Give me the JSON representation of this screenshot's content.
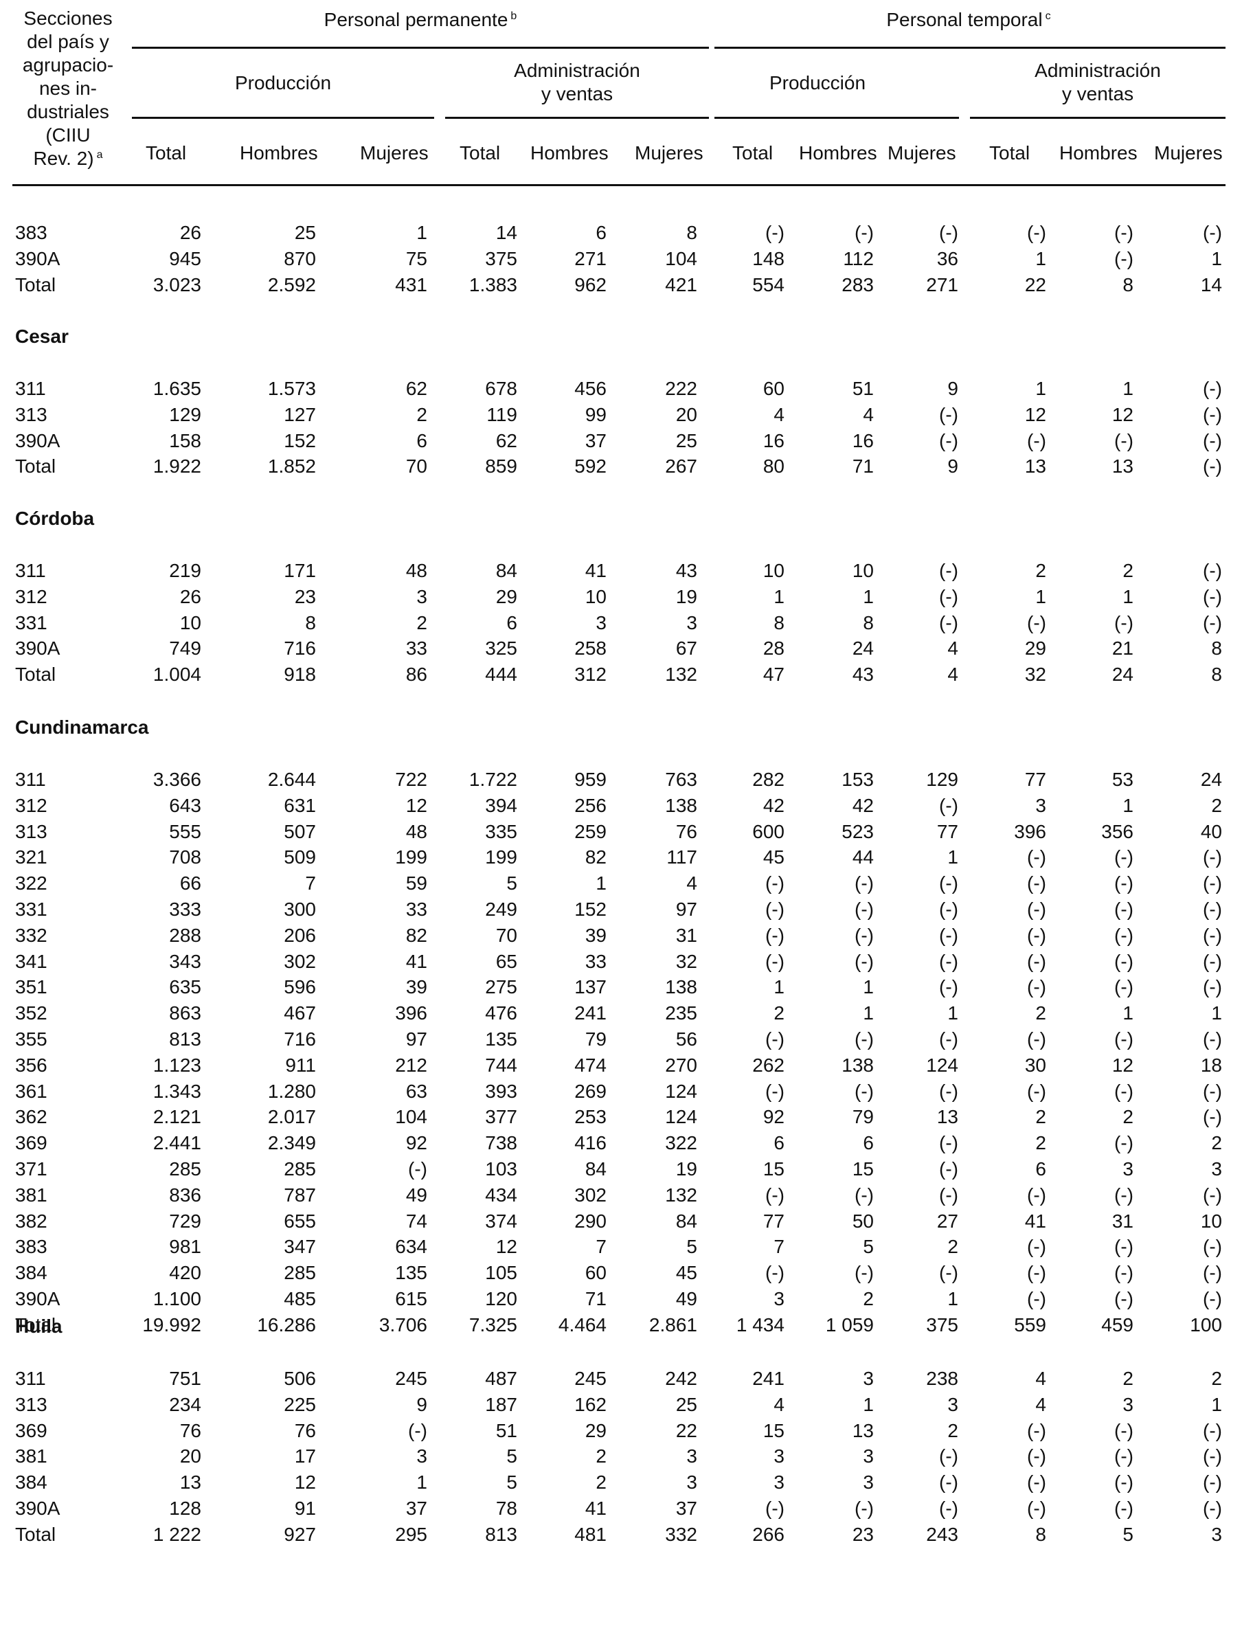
{
  "header": {
    "stub": [
      "Secciones",
      "del país y",
      "agrupacio-",
      "nes in-",
      "dustriales",
      "(CIIU",
      "Rev. 2)"
    ],
    "stub_note": "a",
    "permanent": {
      "label": "Personal permanente",
      "note": "b"
    },
    "temporary": {
      "label": "Personal temporal",
      "note": "c"
    },
    "produccion": "Producción",
    "admin": [
      "Administración",
      "y ventas"
    ],
    "cols": {
      "total": "Total",
      "hombres": "Hombres",
      "mujeres": "Mujeres"
    }
  },
  "sections": [
    {
      "title": "",
      "rows": [
        [
          "383",
          "26",
          "25",
          "1",
          "14",
          "6",
          "8",
          "(-)",
          "(-)",
          "(-)",
          "(-)",
          "(-)",
          "(-)"
        ],
        [
          "390A",
          "945",
          "870",
          "75",
          "375",
          "271",
          "104",
          "148",
          "112",
          "36",
          "1",
          "(-)",
          "1"
        ],
        [
          "Total",
          "3.023",
          "2.592",
          "431",
          "1.383",
          "962",
          "421",
          "554",
          "283",
          "271",
          "22",
          "8",
          "14"
        ]
      ]
    },
    {
      "title": "Cesar",
      "rows": [
        [
          "311",
          "1.635",
          "1.573",
          "62",
          "678",
          "456",
          "222",
          "60",
          "51",
          "9",
          "1",
          "1",
          "(-)"
        ],
        [
          "313",
          "129",
          "127",
          "2",
          "119",
          "99",
          "20",
          "4",
          "4",
          "(-)",
          "12",
          "12",
          "(-)"
        ],
        [
          "390A",
          "158",
          "152",
          "6",
          "62",
          "37",
          "25",
          "16",
          "16",
          "(-)",
          "(-)",
          "(-)",
          "(-)"
        ],
        [
          "Total",
          "1.922",
          "1.852",
          "70",
          "859",
          "592",
          "267",
          "80",
          "71",
          "9",
          "13",
          "13",
          "(-)"
        ]
      ]
    },
    {
      "title": "Córdoba",
      "rows": [
        [
          "311",
          "219",
          "171",
          "48",
          "84",
          "41",
          "43",
          "10",
          "10",
          "(-)",
          "2",
          "2",
          "(-)"
        ],
        [
          "312",
          "26",
          "23",
          "3",
          "29",
          "10",
          "19",
          "1",
          "1",
          "(-)",
          "1",
          "1",
          "(-)"
        ],
        [
          "331",
          "10",
          "8",
          "2",
          "6",
          "3",
          "3",
          "8",
          "8",
          "(-)",
          "(-)",
          "(-)",
          "(-)"
        ],
        [
          "390A",
          "749",
          "716",
          "33",
          "325",
          "258",
          "67",
          "28",
          "24",
          "4",
          "29",
          "21",
          "8"
        ],
        [
          "Total",
          "1.004",
          "918",
          "86",
          "444",
          "312",
          "132",
          "47",
          "43",
          "4",
          "32",
          "24",
          "8"
        ]
      ]
    },
    {
      "title": "Cundinamarca",
      "rows": [
        [
          "311",
          "3.366",
          "2.644",
          "722",
          "1.722",
          "959",
          "763",
          "282",
          "153",
          "129",
          "77",
          "53",
          "24"
        ],
        [
          "312",
          "643",
          "631",
          "12",
          "394",
          "256",
          "138",
          "42",
          "42",
          "(-)",
          "3",
          "1",
          "2"
        ],
        [
          "313",
          "555",
          "507",
          "48",
          "335",
          "259",
          "76",
          "600",
          "523",
          "77",
          "396",
          "356",
          "40"
        ],
        [
          "321",
          "708",
          "509",
          "199",
          "199",
          "82",
          "117",
          "45",
          "44",
          "1",
          "(-)",
          "(-)",
          "(-)"
        ],
        [
          "322",
          "66",
          "7",
          "59",
          "5",
          "1",
          "4",
          "(-)",
          "(-)",
          "(-)",
          "(-)",
          "(-)",
          "(-)"
        ],
        [
          "331",
          "333",
          "300",
          "33",
          "249",
          "152",
          "97",
          "(-)",
          "(-)",
          "(-)",
          "(-)",
          "(-)",
          "(-)"
        ],
        [
          "332",
          "288",
          "206",
          "82",
          "70",
          "39",
          "31",
          "(-)",
          "(-)",
          "(-)",
          "(-)",
          "(-)",
          "(-)"
        ],
        [
          "341",
          "343",
          "302",
          "41",
          "65",
          "33",
          "32",
          "(-)",
          "(-)",
          "(-)",
          "(-)",
          "(-)",
          "(-)"
        ],
        [
          "351",
          "635",
          "596",
          "39",
          "275",
          "137",
          "138",
          "1",
          "1",
          "(-)",
          "(-)",
          "(-)",
          "(-)"
        ],
        [
          "352",
          "863",
          "467",
          "396",
          "476",
          "241",
          "235",
          "2",
          "1",
          "1",
          "2",
          "1",
          "1"
        ],
        [
          "355",
          "813",
          "716",
          "97",
          "135",
          "79",
          "56",
          "(-)",
          "(-)",
          "(-)",
          "(-)",
          "(-)",
          "(-)"
        ],
        [
          "356",
          "1.123",
          "911",
          "212",
          "744",
          "474",
          "270",
          "262",
          "138",
          "124",
          "30",
          "12",
          "18"
        ],
        [
          "361",
          "1.343",
          "1.280",
          "63",
          "393",
          "269",
          "124",
          "(-)",
          "(-)",
          "(-)",
          "(-)",
          "(-)",
          "(-)"
        ],
        [
          "362",
          "2.121",
          "2.017",
          "104",
          "377",
          "253",
          "124",
          "92",
          "79",
          "13",
          "2",
          "2",
          "(-)"
        ],
        [
          "369",
          "2.441",
          "2.349",
          "92",
          "738",
          "416",
          "322",
          "6",
          "6",
          "(-)",
          "2",
          "(-)",
          "2"
        ],
        [
          "371",
          "285",
          "285",
          "(-)",
          "103",
          "84",
          "19",
          "15",
          "15",
          "(-)",
          "6",
          "3",
          "3"
        ],
        [
          "381",
          "836",
          "787",
          "49",
          "434",
          "302",
          "132",
          "(-)",
          "(-)",
          "(-)",
          "(-)",
          "(-)",
          "(-)"
        ],
        [
          "382",
          "729",
          "655",
          "74",
          "374",
          "290",
          "84",
          "77",
          "50",
          "27",
          "41",
          "31",
          "10"
        ],
        [
          "383",
          "981",
          "347",
          "634",
          "12",
          "7",
          "5",
          "7",
          "5",
          "2",
          "(-)",
          "(-)",
          "(-)"
        ],
        [
          "384",
          "420",
          "285",
          "135",
          "105",
          "60",
          "45",
          "(-)",
          "(-)",
          "(-)",
          "(-)",
          "(-)",
          "(-)"
        ],
        [
          "390A",
          "1.100",
          "485",
          "615",
          "120",
          "71",
          "49",
          "3",
          "2",
          "1",
          "(-)",
          "(-)",
          "(-)"
        ],
        [
          "Total",
          "19.992",
          "16.286",
          "3.706",
          "7.325",
          "4.464",
          "2.861",
          "1 434",
          "1 059",
          "375",
          "559",
          "459",
          "100"
        ]
      ]
    },
    {
      "title": "Huila",
      "rows": [
        [
          "311",
          "751",
          "506",
          "245",
          "487",
          "245",
          "242",
          "241",
          "3",
          "238",
          "4",
          "2",
          "2"
        ],
        [
          "313",
          "234",
          "225",
          "9",
          "187",
          "162",
          "25",
          "4",
          "1",
          "3",
          "4",
          "3",
          "1"
        ],
        [
          "369",
          "76",
          "76",
          "(-)",
          "51",
          "29",
          "22",
          "15",
          "13",
          "2",
          "(-)",
          "(-)",
          "(-)"
        ],
        [
          "381",
          "20",
          "17",
          "3",
          "5",
          "2",
          "3",
          "3",
          "3",
          "(-)",
          "(-)",
          "(-)",
          "(-)"
        ],
        [
          "384",
          "13",
          "12",
          "1",
          "5",
          "2",
          "3",
          "3",
          "3",
          "(-)",
          "(-)",
          "(-)",
          "(-)"
        ],
        [
          "390A",
          "128",
          "91",
          "37",
          "78",
          "41",
          "37",
          "(-)",
          "(-)",
          "(-)",
          "(-)",
          "(-)",
          "(-)"
        ],
        [
          "Total",
          "1 222",
          "927",
          "295",
          "813",
          "481",
          "332",
          "266",
          "23",
          "243",
          "8",
          "5",
          "3"
        ]
      ]
    }
  ]
}
